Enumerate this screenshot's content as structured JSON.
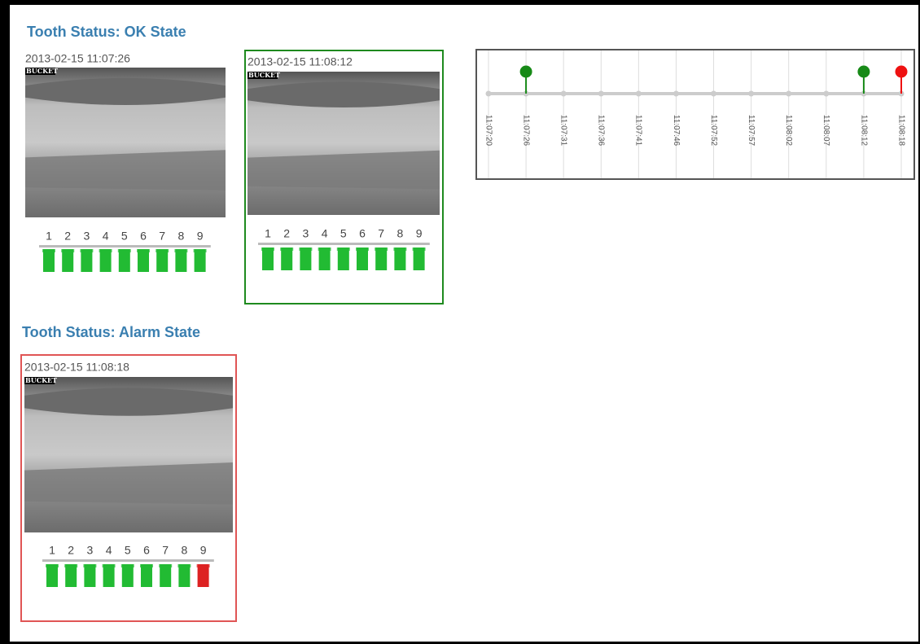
{
  "header": {
    "ok_title": "Tooth Status: OK State",
    "alarm_title": "Tooth Status: Alarm State"
  },
  "panels": [
    {
      "timestamp": "2013-02-15 11:07:26",
      "image_label": "BUCKET",
      "teeth": [
        1,
        2,
        3,
        4,
        5,
        6,
        7,
        8,
        9
      ],
      "tooth_colors": [
        "#22bb33",
        "#22bb33",
        "#22bb33",
        "#22bb33",
        "#22bb33",
        "#22bb33",
        "#22bb33",
        "#22bb33",
        "#22bb33"
      ]
    },
    {
      "timestamp": "2013-02-15 11:08:12",
      "image_label": "BUCKET",
      "teeth": [
        1,
        2,
        3,
        4,
        5,
        6,
        7,
        8,
        9
      ],
      "tooth_colors": [
        "#22bb33",
        "#22bb33",
        "#22bb33",
        "#22bb33",
        "#22bb33",
        "#22bb33",
        "#22bb33",
        "#22bb33",
        "#22bb33"
      ],
      "border": "#1e8a1e"
    },
    {
      "timestamp": "2013-02-15 11:08:18",
      "image_label": "BUCKET",
      "teeth": [
        1,
        2,
        3,
        4,
        5,
        6,
        7,
        8,
        9
      ],
      "tooth_colors": [
        "#22bb33",
        "#22bb33",
        "#22bb33",
        "#22bb33",
        "#22bb33",
        "#22bb33",
        "#22bb33",
        "#22bb33",
        "#dd2222"
      ],
      "border": "#e05555"
    }
  ],
  "timeline": {
    "ticks": [
      "11:07:20",
      "11:07:26",
      "11:07:31",
      "11:07:36",
      "11:07:41",
      "11:07:46",
      "11:07:52",
      "11:07:57",
      "11:08:02",
      "11:08:07",
      "11:08:12",
      "11:08:18"
    ],
    "markers": [
      null,
      "#178a17",
      null,
      null,
      null,
      null,
      null,
      null,
      null,
      null,
      "#178a17",
      "#ee1111"
    ]
  }
}
